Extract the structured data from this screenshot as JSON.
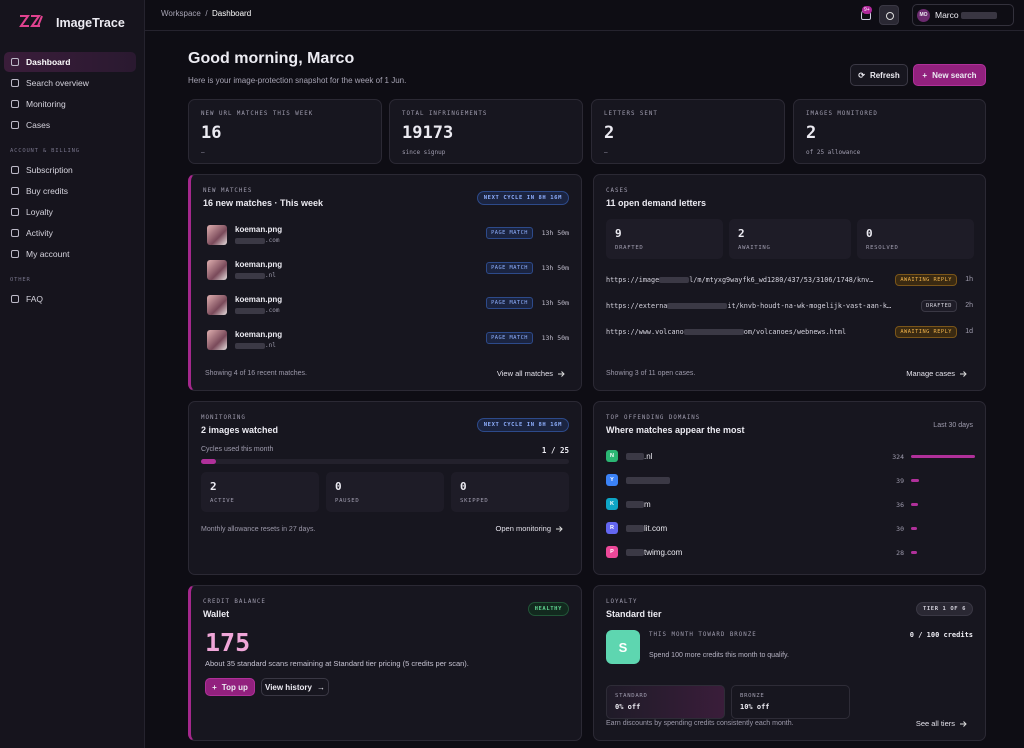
{
  "sidebar": {
    "brand": "ImageTrace",
    "nav": [
      "Dashboard",
      "Search overview",
      "Monitoring",
      "Cases"
    ],
    "billing_label": "ACCOUNT & BILLING",
    "billing_nav": [
      "Subscription",
      "Buy credits",
      "Loyalty",
      "Activity",
      "My account"
    ],
    "other_label": "OTHER",
    "other_nav": [
      "FAQ"
    ]
  },
  "topbar": {
    "breadcrumb": [
      "Workspace",
      "/",
      "Dashboard"
    ],
    "notifications": "9+",
    "user_initials": "MO",
    "user_name": "Marco"
  },
  "header": {
    "title": "Good morning, Marco",
    "subtitle": "Here is your image-protection snapshot for the week of 1 Jun.",
    "refresh": "Refresh",
    "new_search": "New search"
  },
  "stats": [
    {
      "label": "NEW URL MATCHES THIS WEEK",
      "value": 16,
      "sub": "—"
    },
    {
      "label": "TOTAL INFRINGEMENTS",
      "value": 19173,
      "sub": "since signup"
    },
    {
      "label": "LETTERS SENT",
      "value": 2,
      "sub": "—"
    },
    {
      "label": "IMAGES MONITORED",
      "value": 2,
      "sub": "of 25 allowance"
    }
  ],
  "new_matches": {
    "eyebrow": "NEW MATCHES",
    "title": "16 new matches · This week",
    "badge": "NEXT CYCLE IN 8H 16M",
    "items": [
      {
        "file": "koeman.png",
        "domain": ".com",
        "tag": "PAGE MATCH",
        "time": "13h 50m"
      },
      {
        "file": "koeman.png",
        "domain": ".nl",
        "tag": "PAGE MATCH",
        "time": "13h 50m"
      },
      {
        "file": "koeman.png",
        "domain": ".com",
        "tag": "PAGE MATCH",
        "time": "13h 50m"
      },
      {
        "file": "koeman.png",
        "domain": ".nl",
        "tag": "PAGE MATCH",
        "time": "13h 50m"
      }
    ],
    "footer": "Showing 4 of 16 recent matches.",
    "link": "View all matches"
  },
  "cases": {
    "eyebrow": "CASES",
    "title": "11 open demand letters",
    "stats": [
      {
        "value": 9,
        "label": "DRAFTED"
      },
      {
        "value": 2,
        "label": "AWAITING"
      },
      {
        "value": 0,
        "label": "RESOLVED"
      }
    ],
    "rows": [
      {
        "url_start": "https://image",
        "url_end": "l/m/mtyxg9wayfk6_wd1280/437/53/3106/1748/knv…",
        "status": "AWAITING REPLY",
        "age": "1h"
      },
      {
        "url_start": "https://externa",
        "url_end": "it/knvb-houdt-na-wk-mogelijk-vast-aan-k…",
        "status": "DRAFTED",
        "age": "2h"
      },
      {
        "url_start": "https://www.volcano",
        "url_end": "om/volcanoes/webnews.html",
        "status": "AWAITING REPLY",
        "age": "1d"
      }
    ],
    "footer": "Showing 3 of 11 open cases.",
    "link": "Manage cases"
  },
  "monitoring": {
    "eyebrow": "MONITORING",
    "title": "2 images watched",
    "badge": "NEXT CYCLE IN 8H 16M",
    "cycles_label": "Cycles used this month",
    "cycles_used": 1,
    "cycles_separator": "/",
    "cycles_total": 25,
    "stats": [
      {
        "value": 2,
        "label": "ACTIVE"
      },
      {
        "value": 0,
        "label": "PAUSED"
      },
      {
        "value": 0,
        "label": "SKIPPED"
      }
    ],
    "footer": "Monthly allowance resets in 27 days.",
    "link": "Open monitoring"
  },
  "domains": {
    "eyebrow": "TOP OFFENDING DOMAINS",
    "title": "Where matches appear the most",
    "period": "Last 30 days",
    "rows": [
      {
        "initial": "N",
        "name": ".nl",
        "count": 324
      },
      {
        "initial": "Y",
        "name": "",
        "count": 39
      },
      {
        "initial": "K",
        "name": "m",
        "count": 36
      },
      {
        "initial": "R",
        "name": "lit.com",
        "count": 30
      },
      {
        "initial": "P",
        "name": "twimg.com",
        "count": 28
      }
    ]
  },
  "credit": {
    "eyebrow": "CREDIT BALANCE",
    "title": "Wallet",
    "badge": "HEALTHY",
    "balance": 175,
    "note": "About 35 standard scans remaining at Standard tier pricing (5 credits per scan).",
    "top_up": "Top up",
    "history": "View history"
  },
  "loyalty": {
    "eyebrow": "LOYALTY",
    "title": "Standard tier",
    "badge": "TIER 1 OF 6",
    "avatar": "S",
    "progress_label": "THIS MONTH TOWARD BRONZE",
    "progress": "0 / 100 credits",
    "hint": "Spend 100 more credits this month to qualify.",
    "tiers": [
      {
        "name": "STANDARD",
        "discount": "0% off"
      },
      {
        "name": "BRONZE",
        "discount": "10% off"
      }
    ],
    "footer": "Earn discounts by spending credits consistently each month.",
    "link": "See all tiers"
  }
}
